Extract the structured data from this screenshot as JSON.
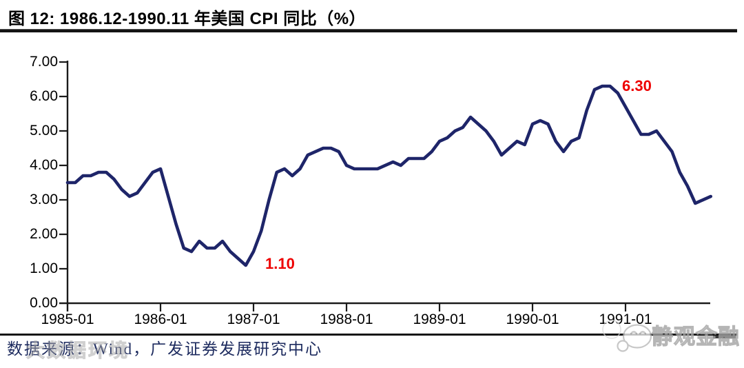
{
  "figure": {
    "title": "图 12:  1986.12-1990.11 年美国 CPI 同比（%）",
    "source_note": "数据来源：Wind，广发证券发展研究中心"
  },
  "watermarks": {
    "bottom_left_text": "大数据环境",
    "brand_text": "静观金融",
    "brand_logo_icon": "chat-face-icon"
  },
  "colors": {
    "line": "#1e2569",
    "annotation": "#ee0000",
    "axis": "#1a1a1a",
    "source_text": "#1c2a5e"
  },
  "chart_data": {
    "type": "line",
    "title": "1986.12-1990.11 年美国 CPI 同比（%）",
    "xlabel": "",
    "ylabel": "",
    "ylim": [
      0,
      7
    ],
    "y_tick_labels": [
      "7.00",
      "6.00",
      "5.00",
      "4.00",
      "3.00",
      "2.00",
      "1.00",
      "0.00"
    ],
    "x_tick_labels": [
      "1985-01",
      "1986-01",
      "1987-01",
      "1988-01",
      "1989-01",
      "1990-01",
      "1991-01"
    ],
    "x_start": "1985-01",
    "x_end": "1991-12",
    "x_freq": "monthly",
    "grid": false,
    "legend": "none",
    "series": [
      {
        "name": "美国 CPI 同比（%）",
        "values": [
          3.5,
          3.5,
          3.7,
          3.7,
          3.8,
          3.8,
          3.6,
          3.3,
          3.1,
          3.2,
          3.5,
          3.8,
          3.9,
          3.1,
          2.3,
          1.6,
          1.5,
          1.8,
          1.6,
          1.6,
          1.8,
          1.5,
          1.3,
          1.1,
          1.5,
          2.1,
          3.0,
          3.8,
          3.9,
          3.7,
          3.9,
          4.3,
          4.4,
          4.5,
          4.5,
          4.4,
          4.0,
          3.9,
          3.9,
          3.9,
          3.9,
          4.0,
          4.1,
          4.0,
          4.2,
          4.2,
          4.2,
          4.4,
          4.7,
          4.8,
          5.0,
          5.1,
          5.4,
          5.2,
          5.0,
          4.7,
          4.3,
          4.5,
          4.7,
          4.6,
          5.2,
          5.3,
          5.2,
          4.7,
          4.4,
          4.7,
          4.8,
          5.6,
          6.2,
          6.3,
          6.3,
          6.1,
          5.7,
          5.3,
          4.9,
          4.9,
          5.0,
          4.7,
          4.4,
          3.8,
          3.4,
          2.9,
          3.0,
          3.1
        ]
      }
    ],
    "annotations": [
      {
        "x": "1986-12",
        "value_label": "1.10"
      },
      {
        "x": "1990-11",
        "value_label": "6.30"
      }
    ]
  }
}
